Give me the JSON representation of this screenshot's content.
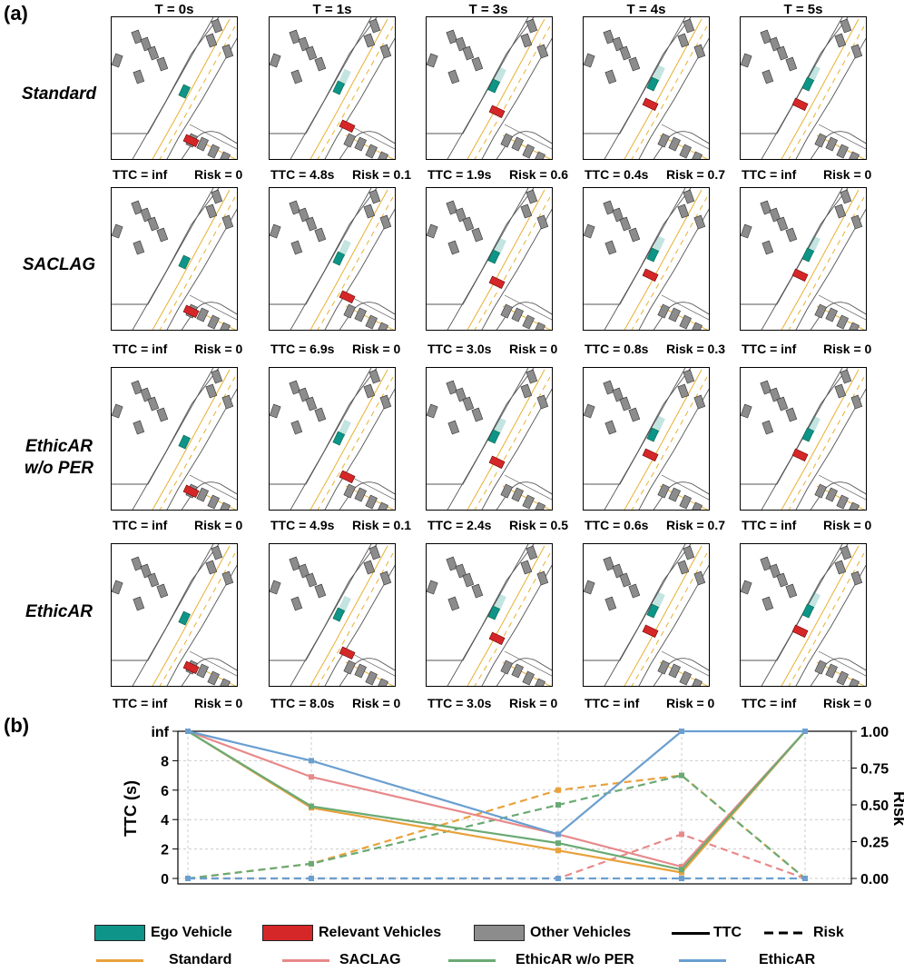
{
  "panel_a_label": "(a)",
  "panel_b_label": "(b)",
  "time_labels": [
    "T = 0s",
    "T = 1s",
    "T = 3s",
    "T = 4s",
    "T = 5s"
  ],
  "rows": [
    {
      "label_lines": [
        "Standard"
      ],
      "captions": [
        {
          "ttc": "TTC = inf",
          "risk": "Risk = 0"
        },
        {
          "ttc": "TTC = 4.8s",
          "risk": "Risk = 0.1"
        },
        {
          "ttc": "TTC = 1.9s",
          "risk": "Risk = 0.6"
        },
        {
          "ttc": "TTC = 0.4s",
          "risk": "Risk = 0.7"
        },
        {
          "ttc": "TTC = inf",
          "risk": "Risk = 0"
        }
      ]
    },
    {
      "label_lines": [
        "SACLAG"
      ],
      "captions": [
        {
          "ttc": "TTC = inf",
          "risk": "Risk = 0"
        },
        {
          "ttc": "TTC = 6.9s",
          "risk": "Risk = 0"
        },
        {
          "ttc": "TTC = 3.0s",
          "risk": "Risk = 0"
        },
        {
          "ttc": "TTC = 0.8s",
          "risk": "Risk = 0.3"
        },
        {
          "ttc": "TTC = inf",
          "risk": "Risk = 0"
        }
      ]
    },
    {
      "label_lines": [
        "EthicAR",
        "w/o PER"
      ],
      "captions": [
        {
          "ttc": "TTC = inf",
          "risk": "Risk = 0"
        },
        {
          "ttc": "TTC = 4.9s",
          "risk": "Risk = 0.1"
        },
        {
          "ttc": "TTC = 2.4s",
          "risk": "Risk = 0.5"
        },
        {
          "ttc": "TTC = 0.6s",
          "risk": "Risk = 0.7"
        },
        {
          "ttc": "TTC = inf",
          "risk": "Risk = 0"
        }
      ]
    },
    {
      "label_lines": [
        "EthicAR"
      ],
      "captions": [
        {
          "ttc": "TTC = inf",
          "risk": "Risk = 0"
        },
        {
          "ttc": "TTC = 8.0s",
          "risk": "Risk = 0"
        },
        {
          "ttc": "TTC = 3.0s",
          "risk": "Risk = 0"
        },
        {
          "ttc": "TTC = inf",
          "risk": "Risk = 0"
        },
        {
          "ttc": "TTC = inf",
          "risk": "Risk = 0"
        }
      ]
    }
  ],
  "colors": {
    "ego": "#0e9488",
    "relevant": "#d62728",
    "other": "#8c8c8c",
    "standard": "#e8a23c",
    "saclag": "#e8898a",
    "ethicar_wo_per": "#6aaa74",
    "ethicar": "#6a9fd0",
    "lane_yellow": "#e8b030",
    "road": "#555555"
  },
  "legend": {
    "ego": "Ego Vehicle",
    "relevant": "Relevant Vehicles",
    "other": "Other Vehicles",
    "ttc": "TTC",
    "risk": "Risk",
    "standard": "Standard",
    "saclag": "SACLAG",
    "ethicar_wo_per": "EthicAR w/o PER",
    "ethicar": "EthicAR"
  },
  "chart_data": {
    "type": "line",
    "x": [
      0,
      1,
      3,
      4,
      5
    ],
    "ylabel_left": "TTC (s)",
    "ylabel_right": "Risk",
    "ylim_left": [
      0,
      10
    ],
    "ylim_right": [
      0,
      1
    ],
    "left_tick_labels": [
      "0",
      "2",
      "4",
      "6",
      "8",
      "inf"
    ],
    "left_tick_values": [
      0,
      2,
      4,
      6,
      8,
      10
    ],
    "right_tick_labels": [
      "0.00",
      "0.25",
      "0.50",
      "0.75",
      "1.00"
    ],
    "right_tick_values": [
      0,
      0.25,
      0.5,
      0.75,
      1.0
    ],
    "grid": true,
    "note": "inf plotted at 10; right axis risk scale 0-1",
    "ttc_series": [
      {
        "name": "Standard",
        "values": [
          10,
          4.8,
          1.9,
          0.4,
          10
        ]
      },
      {
        "name": "SACLAG",
        "values": [
          10,
          6.9,
          3.0,
          0.8,
          10
        ]
      },
      {
        "name": "EthicAR w/o PER",
        "values": [
          10,
          4.9,
          2.4,
          0.6,
          10
        ]
      },
      {
        "name": "EthicAR",
        "values": [
          10,
          8.0,
          3.0,
          10,
          10
        ]
      }
    ],
    "risk_series": [
      {
        "name": "Standard",
        "values": [
          0,
          0.1,
          0.6,
          0.7,
          0
        ]
      },
      {
        "name": "SACLAG",
        "values": [
          0,
          0,
          0,
          0.3,
          0
        ]
      },
      {
        "name": "EthicAR w/o PER",
        "values": [
          0,
          0.1,
          0.5,
          0.7,
          0
        ]
      },
      {
        "name": "EthicAR",
        "values": [
          0,
          0,
          0,
          0,
          0
        ]
      }
    ]
  }
}
